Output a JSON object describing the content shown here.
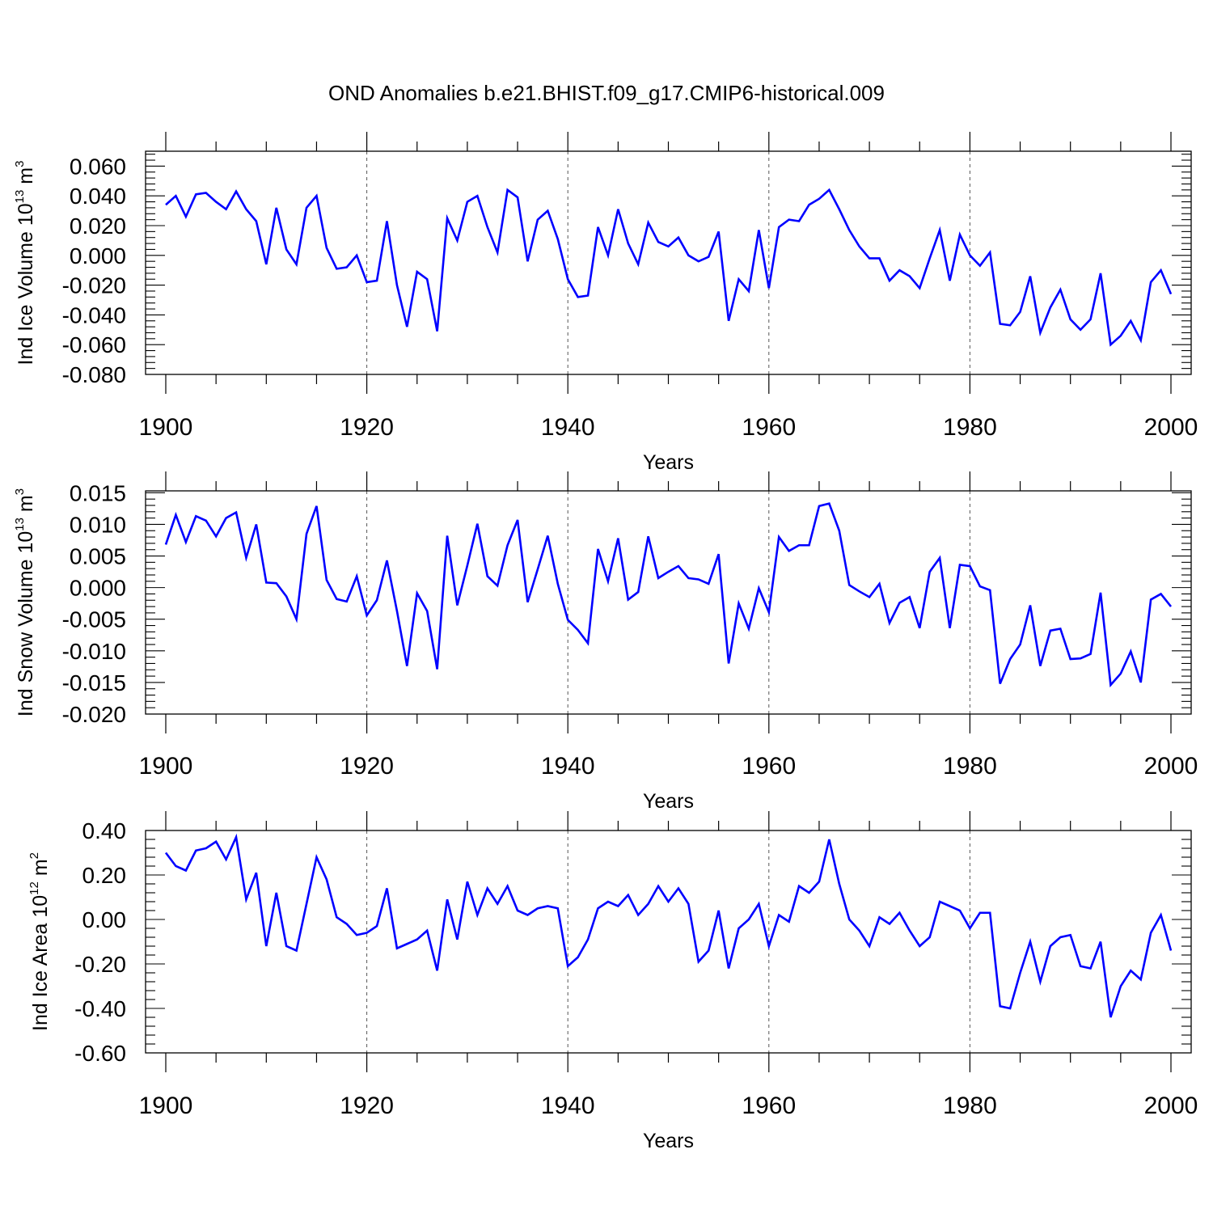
{
  "title": "OND Anomalies b.e21.BHIST.f09_g17.CMIP6-historical.009",
  "colors": {
    "series": "#0000ff",
    "axis": "#000000",
    "grid": "#555555"
  },
  "chart_data": [
    {
      "type": "line",
      "ylabel": {
        "text": "Ind Ice Volume 10",
        "exp": "13",
        "unit": " m",
        "unit_exp": "3"
      },
      "xlabel": "Years",
      "xlim": [
        1900,
        2000
      ],
      "ylim": [
        -0.08,
        0.07
      ],
      "yticks": [
        "0.060",
        "0.040",
        "0.020",
        "0.000",
        "-0.020",
        "-0.040",
        "-0.060",
        "-0.080"
      ],
      "ytick_values": [
        0.06,
        0.04,
        0.02,
        0.0,
        -0.02,
        -0.04,
        -0.06,
        -0.08
      ],
      "xticks": [
        "1900",
        "1920",
        "1940",
        "1960",
        "1980",
        "2000"
      ],
      "x_start": 1900,
      "values": [
        0.034,
        0.04,
        0.026,
        0.041,
        0.042,
        0.036,
        0.031,
        0.043,
        0.031,
        0.023,
        -0.006,
        0.032,
        0.004,
        -0.006,
        0.032,
        0.04,
        0.005,
        -0.009,
        -0.008,
        0.0,
        -0.018,
        -0.017,
        0.023,
        -0.02,
        -0.048,
        -0.011,
        -0.016,
        -0.051,
        0.025,
        0.01,
        0.036,
        0.04,
        0.019,
        0.002,
        0.044,
        0.039,
        -0.004,
        0.024,
        0.03,
        0.011,
        -0.016,
        -0.028,
        -0.027,
        0.019,
        0.0,
        0.031,
        0.008,
        -0.006,
        0.022,
        0.009,
        0.006,
        0.012,
        0.0,
        -0.004,
        -0.001,
        0.016,
        -0.044,
        -0.016,
        -0.024,
        0.017,
        -0.022,
        0.019,
        0.024,
        0.023,
        0.034,
        0.038,
        0.044,
        0.031,
        0.017,
        0.006,
        -0.002,
        -0.002,
        -0.017,
        -0.01,
        -0.014,
        -0.022,
        -0.002,
        0.017,
        -0.017,
        0.014,
        0.0,
        -0.007,
        0.002,
        -0.046,
        -0.047,
        -0.038,
        -0.014,
        -0.052,
        -0.035,
        -0.023,
        -0.043,
        -0.05,
        -0.043,
        -0.012,
        -0.06,
        -0.054,
        -0.044,
        -0.057,
        -0.018,
        -0.01,
        -0.026
      ]
    },
    {
      "type": "line",
      "ylabel": {
        "text": "Ind Snow Volume 10",
        "exp": "13",
        "unit": " m",
        "unit_exp": "3"
      },
      "xlabel": "Years",
      "xlim": [
        1900,
        2000
      ],
      "ylim": [
        -0.02,
        0.0153
      ],
      "yticks": [
        "0.015",
        "0.010",
        "0.005",
        "0.000",
        "-0.005",
        "-0.010",
        "-0.015",
        "-0.020"
      ],
      "ytick_values": [
        0.015,
        0.01,
        0.005,
        0.0,
        -0.005,
        -0.01,
        -0.015,
        -0.02
      ],
      "xticks": [
        "1900",
        "1920",
        "1940",
        "1960",
        "1980",
        "2000"
      ],
      "x_start": 1900,
      "values": [
        0.0068,
        0.0115,
        0.0072,
        0.0113,
        0.0106,
        0.0081,
        0.011,
        0.0119,
        0.0047,
        0.01,
        0.0008,
        0.0007,
        -0.0014,
        -0.005,
        0.0085,
        0.0129,
        0.0012,
        -0.0018,
        -0.0022,
        0.0018,
        -0.0044,
        -0.002,
        0.0043,
        -0.0037,
        -0.0124,
        -0.0009,
        -0.0037,
        -0.0129,
        0.0082,
        -0.0028,
        0.0035,
        0.0101,
        0.0018,
        0.0003,
        0.0067,
        0.0107,
        -0.0023,
        0.0029,
        0.0082,
        0.0006,
        -0.0051,
        -0.0067,
        -0.0088,
        0.0061,
        0.001,
        0.0078,
        -0.0019,
        -0.0007,
        0.0081,
        0.0015,
        0.0025,
        0.0034,
        0.0015,
        0.0013,
        0.0006,
        0.0053,
        -0.012,
        -0.0025,
        -0.0065,
        -0.0001,
        -0.0039,
        0.008,
        0.0058,
        0.0067,
        0.0067,
        0.0129,
        0.0133,
        0.009,
        0.0004,
        -0.0006,
        -0.0015,
        0.0006,
        -0.0056,
        -0.0024,
        -0.0015,
        -0.0064,
        0.0025,
        0.0047,
        -0.0064,
        0.0036,
        0.0034,
        0.0002,
        -0.0004,
        -0.0152,
        -0.0113,
        -0.009,
        -0.0028,
        -0.0124,
        -0.0068,
        -0.0065,
        -0.0113,
        -0.0112,
        -0.0105,
        -0.0008,
        -0.0154,
        -0.0136,
        -0.0101,
        -0.015,
        -0.0019,
        -0.001,
        -0.003
      ]
    },
    {
      "type": "line",
      "ylabel": {
        "text": "Ind Ice Area 10",
        "exp": "12",
        "unit": " m",
        "unit_exp": "2"
      },
      "xlabel": "Years",
      "xlim": [
        1900,
        2000
      ],
      "ylim": [
        -0.6,
        0.4
      ],
      "yticks": [
        "0.40",
        "0.20",
        "0.00",
        "-0.20",
        "-0.40",
        "-0.60"
      ],
      "ytick_values": [
        0.4,
        0.2,
        0.0,
        -0.2,
        -0.4,
        -0.6
      ],
      "xticks": [
        "1900",
        "1920",
        "1940",
        "1960",
        "1980",
        "2000"
      ],
      "x_start": 1900,
      "values": [
        0.3,
        0.24,
        0.22,
        0.31,
        0.32,
        0.35,
        0.27,
        0.37,
        0.09,
        0.21,
        -0.12,
        0.12,
        -0.12,
        -0.14,
        0.07,
        0.28,
        0.18,
        0.01,
        -0.02,
        -0.07,
        -0.06,
        -0.03,
        0.14,
        -0.13,
        -0.11,
        -0.09,
        -0.05,
        -0.23,
        0.09,
        -0.09,
        0.17,
        0.02,
        0.14,
        0.07,
        0.15,
        0.04,
        0.02,
        0.05,
        0.06,
        0.05,
        -0.21,
        -0.17,
        -0.09,
        0.05,
        0.08,
        0.06,
        0.11,
        0.02,
        0.07,
        0.15,
        0.08,
        0.14,
        0.07,
        -0.19,
        -0.14,
        0.04,
        -0.22,
        -0.04,
        0.0,
        0.07,
        -0.12,
        0.02,
        -0.01,
        0.15,
        0.12,
        0.17,
        0.36,
        0.16,
        0.0,
        -0.05,
        -0.12,
        0.01,
        -0.02,
        0.03,
        -0.05,
        -0.12,
        -0.08,
        0.08,
        0.06,
        0.04,
        -0.04,
        0.03,
        0.03,
        -0.39,
        -0.4,
        -0.24,
        -0.1,
        -0.28,
        -0.12,
        -0.08,
        -0.07,
        -0.21,
        -0.22,
        -0.1,
        -0.44,
        -0.3,
        -0.23,
        -0.27,
        -0.06,
        0.02,
        -0.14
      ]
    }
  ]
}
